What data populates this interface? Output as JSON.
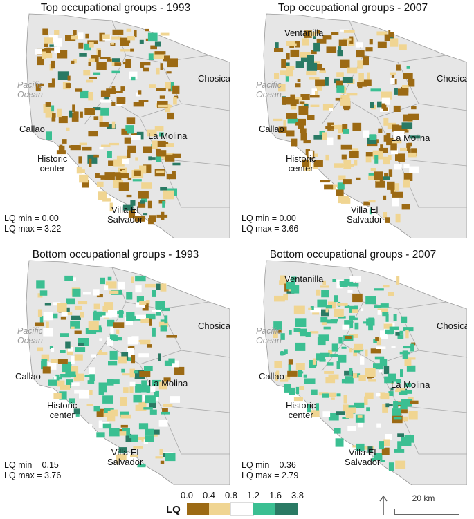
{
  "panels": [
    {
      "title": "Top occupational groups - 1993",
      "ocean": "Pacific\nOcean",
      "labels": {
        "chosica": "Chosica",
        "callao": "Callao",
        "la_molina": "La Molina",
        "historic": "Historic\ncenter",
        "villa": "Villa El\nSalvador"
      },
      "lq_min": "LQ min = 0.00",
      "lq_max": "LQ max = 3.22"
    },
    {
      "title": "Top occupational groups - 2007",
      "ocean": "Pacific\nOcean",
      "labels": {
        "ventanilla": "Ventanilla",
        "chosica": "Chosica",
        "callao": "Callao",
        "la_molina": "La Molina",
        "historic": "Historic\ncenter",
        "villa": "Villa El\nSalvador"
      },
      "lq_min": "LQ min = 0.00",
      "lq_max": "LQ max = 3.66"
    },
    {
      "title": "Bottom occupational groups - 1993",
      "ocean": "Pacific\nOcean",
      "labels": {
        "chosica": "Chosica",
        "callao": "Callao",
        "la_molina": "La Molina",
        "historic": "Historic\ncenter",
        "villa": "Villa El\nSalvador"
      },
      "lq_min": "LQ min = 0.15",
      "lq_max": "LQ max = 3.76"
    },
    {
      "title": "Bottom occupational groups - 2007",
      "ocean": "Pacific\nOcean",
      "labels": {
        "ventanilla": "Ventanilla",
        "chosica": "Chosica",
        "callao": "Callao",
        "la_molina": "La Molina",
        "historic": "Historic\ncenter",
        "villa": "Villa El\nSalvador"
      },
      "lq_min": "LQ min = 0.36",
      "lq_max": "LQ max = 2.79"
    }
  ],
  "legend": {
    "title": "LQ",
    "ticks": [
      "0.0",
      "0.4",
      "0.8",
      "1.2",
      "1.6",
      "3.8"
    ],
    "classes": [
      {
        "range": "0.0–0.4",
        "color": "#9c6a14"
      },
      {
        "range": "0.4–0.8",
        "color": "#f0d592"
      },
      {
        "range": "0.8–1.2",
        "color": "#ffffff"
      },
      {
        "range": "1.2–1.6",
        "color": "#3bbf92"
      },
      {
        "range": "1.6–3.8",
        "color": "#2a7a64"
      }
    ]
  },
  "scale_bar": {
    "label": "20 km"
  },
  "colors": {
    "background_land": "#e6e6e6",
    "ocean": "#ffffff",
    "district_border": "#9a9a9a"
  }
}
